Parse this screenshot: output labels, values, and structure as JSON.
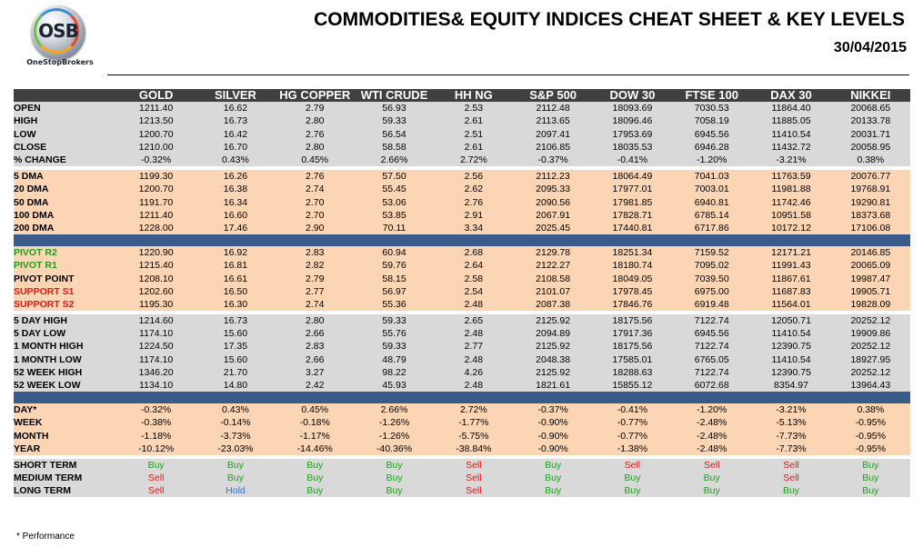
{
  "header": {
    "logo_text": "OSB",
    "logo_sub": "OneStopBrokers",
    "title": "COMMODITIES& EQUITY INDICES CHEAT SHEET & KEY LEVELS",
    "date": "30/04/2015"
  },
  "columns": [
    "GOLD",
    "SILVER",
    "HG COPPER",
    "WTI CRUDE",
    "HH NG",
    "S&P 500",
    "DOW 30",
    "FTSE 100",
    "DAX 30",
    "NIKKEI"
  ],
  "sections": [
    {
      "style": "grey",
      "rows": [
        {
          "label": "OPEN",
          "values": [
            "1211.40",
            "16.62",
            "2.79",
            "56.93",
            "2.53",
            "2112.48",
            "18093.69",
            "7030.53",
            "11864.40",
            "20068.65"
          ]
        },
        {
          "label": "HIGH",
          "values": [
            "1213.50",
            "16.73",
            "2.80",
            "59.33",
            "2.61",
            "2113.65",
            "18096.46",
            "7058.19",
            "11885.05",
            "20133.78"
          ]
        },
        {
          "label": "LOW",
          "values": [
            "1200.70",
            "16.42",
            "2.76",
            "56.54",
            "2.51",
            "2097.41",
            "17953.69",
            "6945.56",
            "11410.54",
            "20031.71"
          ]
        },
        {
          "label": "CLOSE",
          "values": [
            "1210.00",
            "16.70",
            "2.80",
            "58.58",
            "2.61",
            "2106.85",
            "18035.53",
            "6946.28",
            "11432.72",
            "20058.95"
          ]
        },
        {
          "label": "% CHANGE",
          "values": [
            "-0.32%",
            "0.43%",
            "0.45%",
            "2.66%",
            "2.72%",
            "-0.37%",
            "-0.41%",
            "-1.20%",
            "-3.21%",
            "0.38%"
          ]
        }
      ]
    },
    {
      "style": "peach",
      "rows": [
        {
          "label": "5 DMA",
          "values": [
            "1199.30",
            "16.26",
            "2.76",
            "57.50",
            "2.56",
            "2112.23",
            "18064.49",
            "7041.03",
            "11763.59",
            "20076.77"
          ]
        },
        {
          "label": "20 DMA",
          "values": [
            "1200.70",
            "16.38",
            "2.74",
            "55.45",
            "2.62",
            "2095.33",
            "17977.01",
            "7003.01",
            "11981.88",
            "19768.91"
          ]
        },
        {
          "label": "50 DMA",
          "values": [
            "1191.70",
            "16.34",
            "2.70",
            "53.06",
            "2.76",
            "2090.56",
            "17981.85",
            "6940.81",
            "11742.46",
            "19290.81"
          ]
        },
        {
          "label": "100 DMA",
          "values": [
            "1211.40",
            "16.60",
            "2.70",
            "53.85",
            "2.91",
            "2067.91",
            "17828.71",
            "6785.14",
            "10951.58",
            "18373.68"
          ]
        },
        {
          "label": "200 DMA",
          "values": [
            "1228.00",
            "17.46",
            "2.90",
            "70.11",
            "3.34",
            "2025.45",
            "17440.81",
            "6717.86",
            "10172.12",
            "17106.08"
          ]
        }
      ]
    },
    {
      "style": "peach",
      "rows": [
        {
          "label": "PIVOT R2",
          "labelClass": "c-green-lbl",
          "values": [
            "1220.90",
            "16.92",
            "2.83",
            "60.94",
            "2.68",
            "2129.78",
            "18251.34",
            "7159.52",
            "12171.21",
            "20146.85"
          ]
        },
        {
          "label": "PIVOT R1",
          "labelClass": "c-green-lbl",
          "values": [
            "1215.40",
            "16.81",
            "2.82",
            "59.76",
            "2.64",
            "2122.27",
            "18180.74",
            "7095.02",
            "11991.43",
            "20065.09"
          ]
        },
        {
          "label": "PIVOT POINT",
          "values": [
            "1208.10",
            "16.61",
            "2.79",
            "58.15",
            "2.58",
            "2108.58",
            "18049.05",
            "7039.50",
            "11867.61",
            "19987.47"
          ]
        },
        {
          "label": "SUPPORT S1",
          "labelClass": "c-red-lbl",
          "values": [
            "1202.60",
            "16.50",
            "2.77",
            "56.97",
            "2.54",
            "2101.07",
            "17978.45",
            "6975.00",
            "11687.83",
            "19905.71"
          ]
        },
        {
          "label": "SUPPORT S2",
          "labelClass": "c-red-lbl",
          "values": [
            "1195.30",
            "16.30",
            "2.74",
            "55.36",
            "2.48",
            "2087.38",
            "17846.76",
            "6919.48",
            "11564.01",
            "19828.09"
          ]
        }
      ]
    },
    {
      "style": "grey",
      "rows": [
        {
          "label": "5 DAY HIGH",
          "values": [
            "1214.60",
            "16.73",
            "2.80",
            "59.33",
            "2.65",
            "2125.92",
            "18175.56",
            "7122.74",
            "12050.71",
            "20252.12"
          ]
        },
        {
          "label": "5 DAY LOW",
          "values": [
            "1174.10",
            "15.60",
            "2.66",
            "55.76",
            "2.48",
            "2094.89",
            "17917.36",
            "6945.56",
            "11410.54",
            "19909.86"
          ]
        },
        {
          "label": "1 MONTH HIGH",
          "values": [
            "1224.50",
            "17.35",
            "2.83",
            "59.33",
            "2.77",
            "2125.92",
            "18175.56",
            "7122.74",
            "12390.75",
            "20252.12"
          ]
        },
        {
          "label": "1 MONTH LOW",
          "values": [
            "1174.10",
            "15.60",
            "2.66",
            "48.79",
            "2.48",
            "2048.38",
            "17585.01",
            "6765.05",
            "11410.54",
            "18927.95"
          ]
        },
        {
          "label": "52 WEEK HIGH",
          "values": [
            "1346.20",
            "21.70",
            "3.27",
            "98.22",
            "4.26",
            "2125.92",
            "18288.63",
            "7122.74",
            "12390.75",
            "20252.12"
          ]
        },
        {
          "label": "52 WEEK LOW",
          "values": [
            "1134.10",
            "14.80",
            "2.42",
            "45.93",
            "2.48",
            "1821.61",
            "15855.12",
            "6072.68",
            "8354.97",
            "13964.43"
          ]
        }
      ]
    },
    {
      "style": "peach",
      "rows": [
        {
          "label": "DAY*",
          "values": [
            "-0.32%",
            "0.43%",
            "0.45%",
            "2.66%",
            "2.72%",
            "-0.37%",
            "-0.41%",
            "-1.20%",
            "-3.21%",
            "0.38%"
          ]
        },
        {
          "label": "WEEK",
          "values": [
            "-0.38%",
            "-0.14%",
            "-0.18%",
            "-1.26%",
            "-1.77%",
            "-0.90%",
            "-0.77%",
            "-2.48%",
            "-5.13%",
            "-0.95%"
          ]
        },
        {
          "label": "MONTH",
          "values": [
            "-1.18%",
            "-3.73%",
            "-1.17%",
            "-1.26%",
            "-5.75%",
            "-0.90%",
            "-0.77%",
            "-2.48%",
            "-7.73%",
            "-0.95%"
          ]
        },
        {
          "label": "YEAR",
          "values": [
            "-10.12%",
            "-23.03%",
            "-14.46%",
            "-40.36%",
            "-38.84%",
            "-0.90%",
            "-1.38%",
            "-2.48%",
            "-7.73%",
            "-0.95%"
          ]
        }
      ]
    },
    {
      "style": "grey",
      "signals": true,
      "rows": [
        {
          "label": "SHORT TERM",
          "values": [
            "Buy",
            "Buy",
            "Buy",
            "Buy",
            "Sell",
            "Buy",
            "Sell",
            "Sell",
            "Sell",
            "Buy"
          ]
        },
        {
          "label": "MEDIUM TERM",
          "values": [
            "Sell",
            "Buy",
            "Buy",
            "Buy",
            "Sell",
            "Buy",
            "Buy",
            "Buy",
            "Sell",
            "Buy"
          ]
        },
        {
          "label": "LONG TERM",
          "values": [
            "Sell",
            "Hold",
            "Buy",
            "Buy",
            "Sell",
            "Buy",
            "Buy",
            "Buy",
            "Buy",
            "Buy"
          ]
        }
      ]
    }
  ],
  "separators_after": [
    0,
    1,
    2,
    3,
    4
  ],
  "separator_style": {
    "0": "gap",
    "1": "blue",
    "2": "gap",
    "3": "blue",
    "4": "gap"
  },
  "colors": {
    "header_bg": "#404040",
    "grey_band": "#d9d9d9",
    "peach_band": "#fcd5b4",
    "separator_blue": "#3a5a8a",
    "buy": "#1e9e1e",
    "sell": "#e01818",
    "hold": "#3a70c4"
  },
  "footnote": "* Performance"
}
